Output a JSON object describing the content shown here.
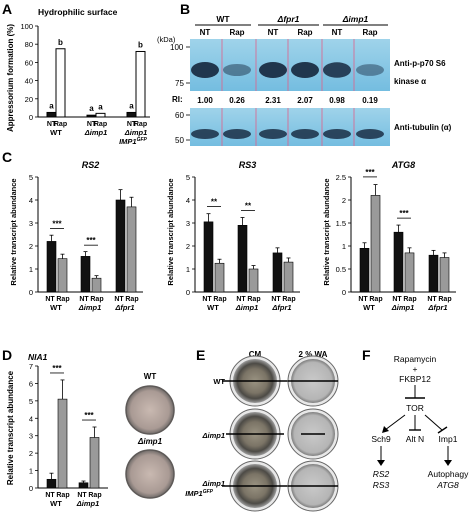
{
  "panelA": {
    "letter": "A",
    "title": "Hydrophilic surface",
    "ylabel": "Appressorium formation (%)",
    "yticks": [
      "0",
      "20",
      "40",
      "60",
      "80",
      "100"
    ],
    "groups": [
      "WT",
      "Δimp1",
      "Δimp1",
      "IMP1"
    ],
    "gfp_superscript": "GFP",
    "bar_labels": [
      "NT",
      "Rap"
    ],
    "letters_sig": [
      "a",
      "b",
      "a",
      "a",
      "a",
      "b"
    ],
    "chart_data": {
      "type": "bar",
      "categories": [
        "WT",
        "Δimp1",
        "Δimp1 IMP1GFP"
      ],
      "series": [
        {
          "name": "NT",
          "values": [
            5,
            2,
            5
          ]
        },
        {
          "name": "Rap",
          "values": [
            75,
            4,
            72
          ]
        }
      ],
      "ylabel": "Appressorium formation (%)",
      "ylim": [
        0,
        100
      ]
    }
  },
  "panelB": {
    "letter": "B",
    "kda": "(kDa)",
    "strains": [
      "WT",
      "Δfpr1",
      "Δimp1"
    ],
    "lanes": [
      "NT",
      "Rap",
      "NT",
      "Rap",
      "NT",
      "Rap"
    ],
    "mw_top": [
      "100",
      "75"
    ],
    "mw_bottom": [
      "60",
      "50"
    ],
    "antibody1_line1": "Anti-p-p70 S6",
    "antibody1_line2": "kinase α",
    "ri_label": "RI:",
    "ri_values": [
      "1.00",
      "0.26",
      "2.31",
      "2.07",
      "0.98",
      "0.19"
    ],
    "antibody2": "Anti-tubulin (α)"
  },
  "panelC": {
    "letter": "C",
    "ylabel": "Relative transcript abundance",
    "xlabels": [
      "NT",
      "Rap"
    ],
    "strains": [
      "WT",
      "Δimp1",
      "Δfpr1"
    ],
    "sig2": "**",
    "sig3": "***",
    "charts": [
      {
        "gene": "RS2",
        "yticks": [
          "0",
          "1",
          "2",
          "3",
          "4",
          "5"
        ]
      },
      {
        "gene": "RS3",
        "yticks": [
          "0",
          "1",
          "2",
          "3",
          "4",
          "5"
        ]
      },
      {
        "gene": "ATG8",
        "yticks": [
          "0",
          "0.5",
          "1",
          "1.5",
          "2",
          "2.5"
        ]
      }
    ],
    "chart_data": [
      {
        "type": "bar",
        "title": "RS2",
        "categories": [
          "WT",
          "Δimp1",
          "Δfpr1"
        ],
        "series": [
          {
            "name": "NT",
            "values": [
              2.2,
              1.55,
              4.0
            ]
          },
          {
            "name": "Rap",
            "values": [
              1.45,
              0.6,
              3.7
            ]
          }
        ],
        "ylim": [
          0,
          5
        ]
      },
      {
        "type": "bar",
        "title": "RS3",
        "categories": [
          "WT",
          "Δimp1",
          "Δfpr1"
        ],
        "series": [
          {
            "name": "NT",
            "values": [
              3.05,
              2.9,
              1.7
            ]
          },
          {
            "name": "Rap",
            "values": [
              1.25,
              1.0,
              1.3
            ]
          }
        ],
        "ylim": [
          0,
          5
        ]
      },
      {
        "type": "bar",
        "title": "ATG8",
        "categories": [
          "WT",
          "Δimp1",
          "Δfpr1"
        ],
        "series": [
          {
            "name": "NT",
            "values": [
              0.95,
              1.3,
              0.8
            ]
          },
          {
            "name": "Rap",
            "values": [
              2.1,
              0.85,
              0.75
            ]
          }
        ],
        "ylim": [
          0,
          2.5
        ]
      }
    ]
  },
  "panelD": {
    "letter": "D",
    "gene": "NIA1",
    "ylabel": "Relative transcript abundance",
    "yticks": [
      "0",
      "1",
      "2",
      "3",
      "4",
      "5",
      "6",
      "7"
    ],
    "sig": "***",
    "xlabels": [
      "NT",
      "Rap"
    ],
    "strains": [
      "WT",
      "Δimp1"
    ],
    "plate_labels": [
      "WT",
      "Δimp1"
    ],
    "chart_data": {
      "type": "bar",
      "categories": [
        "WT",
        "Δimp1"
      ],
      "series": [
        {
          "name": "NT",
          "values": [
            0.5,
            0.3
          ]
        },
        {
          "name": "Rap",
          "values": [
            5.1,
            2.9
          ]
        }
      ],
      "ylim": [
        0,
        7
      ]
    }
  },
  "panelE": {
    "letter": "E",
    "col_headers": [
      "CM",
      "2 % WA"
    ],
    "rows": [
      "WT",
      "Δimp1",
      "Δimp1",
      "IMP1"
    ],
    "gfp_superscript": "GFP"
  },
  "panelF": {
    "letter": "F",
    "rapamycin": "Rapamycin",
    "plus": "+",
    "fkbp12": "FKBP12",
    "tor": "TOR",
    "sch9": "Sch9",
    "altn": "Alt N",
    "imp1": "Imp1",
    "rs2": "RS2",
    "rs3": "RS3",
    "autophagy": "Autophagy",
    "atg8": "ATG8"
  }
}
